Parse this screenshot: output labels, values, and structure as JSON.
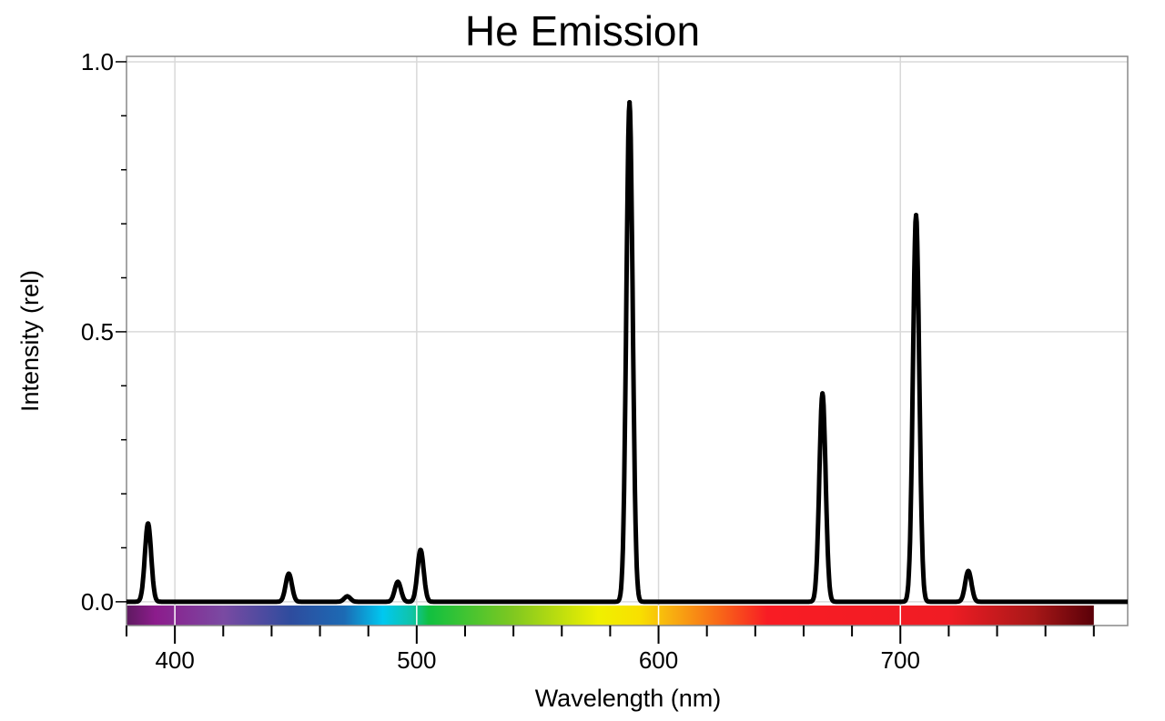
{
  "chart_data": {
    "type": "line",
    "title": "He Emission",
    "xlabel": "Wavelength (nm)",
    "ylabel": "Intensity (rel)",
    "xlim": [
      380,
      794
    ],
    "ylim": [
      -0.044,
      1.01
    ],
    "xticks": [
      400,
      500,
      600,
      700
    ],
    "xtick_labels": [
      "400",
      "500",
      "600",
      "700"
    ],
    "x_minor_step": 20,
    "yticks": [
      0.0,
      0.5,
      1.0
    ],
    "ytick_labels": [
      "0.0",
      "0.5",
      "1.0"
    ],
    "y_minor_step": 0.1,
    "grid": true,
    "legend": "none",
    "line_color": "#000000",
    "grid_color": "#d9d9d9",
    "spectrum_bar": {
      "range": [
        380,
        780
      ],
      "stops": [
        {
          "nm": 380,
          "color": "#5e1a60"
        },
        {
          "nm": 392,
          "color": "#8c1c8c"
        },
        {
          "nm": 420,
          "color": "#7a4aa2"
        },
        {
          "nm": 448,
          "color": "#2e4c9e"
        },
        {
          "nm": 470,
          "color": "#1c6ab4"
        },
        {
          "nm": 486,
          "color": "#00c8f0"
        },
        {
          "nm": 498,
          "color": "#10c4a8"
        },
        {
          "nm": 505,
          "color": "#10c040"
        },
        {
          "nm": 540,
          "color": "#80c820"
        },
        {
          "nm": 575,
          "color": "#f0f000"
        },
        {
          "nm": 592,
          "color": "#f8e000"
        },
        {
          "nm": 605,
          "color": "#f8b010"
        },
        {
          "nm": 625,
          "color": "#f86818"
        },
        {
          "nm": 645,
          "color": "#f81c24"
        },
        {
          "nm": 720,
          "color": "#f01c24"
        },
        {
          "nm": 755,
          "color": "#a81818"
        },
        {
          "nm": 780,
          "color": "#5a0008"
        }
      ]
    },
    "peaks": [
      {
        "x": 388.9,
        "y": 0.145
      },
      {
        "x": 447.1,
        "y": 0.052
      },
      {
        "x": 471.3,
        "y": 0.01
      },
      {
        "x": 492.2,
        "y": 0.037
      },
      {
        "x": 501.6,
        "y": 0.096
      },
      {
        "x": 588.0,
        "y": 0.925
      },
      {
        "x": 667.8,
        "y": 0.386
      },
      {
        "x": 706.5,
        "y": 0.716
      },
      {
        "x": 728.1,
        "y": 0.057
      }
    ]
  }
}
